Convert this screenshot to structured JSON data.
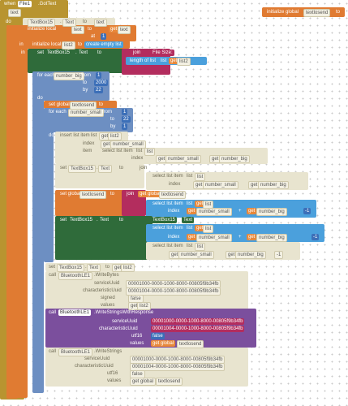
{
  "event": {
    "when": "when",
    "component": "File1",
    "event": ".GotText",
    "param": "text",
    "do": "do"
  },
  "global_init": [
    "initialize global",
    "textlosend",
    "to"
  ],
  "rows": [
    [
      "do",
      "TextBox15",
      ".",
      "Text",
      "to",
      "text"
    ],
    [
      "initialize local",
      "text",
      "to",
      "get",
      "text"
    ],
    [
      "at",
      "1"
    ],
    [
      "in",
      "initialize local",
      "list2",
      "to",
      "create empty list"
    ],
    [
      "in",
      "set",
      "TextBox15",
      ".",
      "Text",
      "to",
      "join",
      "File Size:"
    ],
    [
      "length of list",
      "list",
      "get",
      "list2"
    ],
    [
      "for each",
      "number_big",
      "from",
      "1"
    ],
    [
      "to",
      "2000"
    ],
    [
      "by",
      "22"
    ],
    [
      "do"
    ],
    [
      "set global",
      "textlosend",
      "to"
    ],
    [
      "for each",
      "number_small",
      "from",
      "1"
    ],
    [
      "to",
      "22"
    ],
    [
      "by",
      "1"
    ],
    [
      "do",
      "insert list item",
      "list",
      "get",
      "list2"
    ],
    [
      "index",
      "get",
      "number_small"
    ],
    [
      "item",
      "select list item",
      "list",
      "list"
    ],
    [
      "index",
      "get",
      "number_small",
      "get",
      "number_big"
    ],
    [
      "set",
      "TextBox15",
      ".",
      "Text",
      "to",
      "join"
    ],
    [
      "select list item",
      "list",
      "list"
    ],
    [
      "index",
      "get",
      "number_small",
      "get",
      "number_big"
    ],
    [
      "set global",
      "textlosend",
      "to",
      "join",
      "get global",
      "textlosend"
    ],
    [
      "select list item",
      "list",
      "get",
      "list"
    ],
    [
      "index",
      "get",
      "number_small",
      "+",
      "get",
      "number_big",
      "-1"
    ],
    [
      "set",
      "TextBox15",
      ".",
      "Text",
      "to",
      "TextBox15",
      ".",
      "Text"
    ],
    [
      "select list item",
      "list",
      "get",
      "list"
    ],
    [
      "index",
      "get",
      "number_small",
      "+",
      "get",
      "number_big",
      "-1"
    ],
    [
      "select list item",
      "list",
      "list"
    ],
    [
      "get",
      "number_small",
      "get",
      "number_big",
      "-1"
    ],
    [
      "set",
      "TextBox15",
      ".",
      "Text",
      "to",
      "get",
      "list2"
    ],
    [
      "call",
      "BluetoothLE1",
      ".WriteBytes"
    ],
    [
      "serviceUuid",
      "00001000-0000-1000-8000-00805f9b34fb"
    ],
    [
      "characteristicUuid",
      "00001004-0000-1000-8000-00805f9b34fb"
    ],
    [
      "signed",
      "false"
    ],
    [
      "values",
      "get",
      "list2"
    ],
    [
      "call",
      "BluetoothLE1",
      ".WriteStringsWithResponse"
    ],
    [
      "serviceUuid",
      "00001000-0000-1000-8000-00805f9b34fb"
    ],
    [
      "characteristicUuid",
      "00001004-0000-1000-8000-00805f9b34fb"
    ],
    [
      "utf16",
      "false"
    ],
    [
      "values",
      "get global",
      "textlosend"
    ],
    [
      "call",
      "BluetoothLE1",
      ".WriteStrings"
    ],
    [
      "serviceUuid",
      "00001000-0000-1000-8000-00805f9b34fb"
    ],
    [
      "characteristicUuid",
      "00001004-0000-1000-8000-00805f9b34fb"
    ],
    [
      "utf16",
      "false"
    ],
    [
      "values",
      "get global",
      "textlosend"
    ]
  ]
}
